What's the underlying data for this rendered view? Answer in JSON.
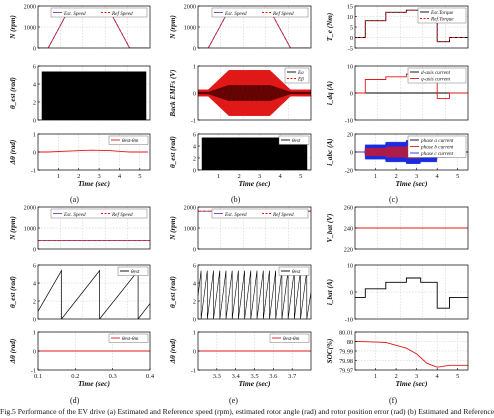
{
  "caption": "Fig.5 Performance of the EV drive (a) Estimated and Reference speed (rpm), estimated rotor angle (rad) and rotor position error (rad) (b) Estimated and Reference",
  "panel_labels": [
    "(a)",
    "(b)",
    "(c)",
    "(d)",
    "(e)",
    "(f)"
  ],
  "colors": {
    "est": "#7b3fa6",
    "ref": "#e01818",
    "black": "#000000",
    "red": "#e01818",
    "grey": "#808080",
    "blue": "#1a2be0",
    "green": "#1d8a2a"
  },
  "chart_data": [
    {
      "id": "a1",
      "type": "line",
      "ylabel": "N (rpm)",
      "xlim": [
        0,
        5.5
      ],
      "ylim": [
        0,
        2000
      ],
      "yticks": [
        "0",
        "1000",
        "2000"
      ],
      "xticks": [],
      "xticklabels": [],
      "grid": true,
      "legend": "top-right",
      "series": [
        {
          "name": "Est. Speed",
          "color": "#7b3fa6",
          "dash": false,
          "x": [
            0,
            0.5,
            1.5,
            2.6,
            3.5,
            4.5,
            5.4
          ],
          "y": [
            0,
            0,
            1800,
            1800,
            1800,
            0,
            0
          ]
        },
        {
          "name": "Ref Speed",
          "color": "#e01818",
          "dash": true,
          "x": [
            0,
            0.5,
            1.5,
            2.6,
            3.5,
            4.5,
            5.4
          ],
          "y": [
            0,
            0,
            1800,
            1800,
            1800,
            0,
            0
          ]
        }
      ]
    },
    {
      "id": "b1",
      "type": "line",
      "ylabel": "N (rpm)",
      "xlim": [
        0,
        5.5
      ],
      "ylim": [
        0,
        2000
      ],
      "yticks": [
        "0",
        "1000",
        "2000"
      ],
      "xticks": [],
      "xticklabels": [],
      "grid": true,
      "legend": "top-right",
      "series": [
        {
          "name": "Est. Speed",
          "color": "#7b3fa6",
          "dash": false,
          "x": [
            0,
            0.5,
            1.5,
            2.6,
            3.5,
            4.5,
            5.4
          ],
          "y": [
            0,
            0,
            1800,
            1800,
            1800,
            0,
            0
          ]
        },
        {
          "name": "Ref Speed",
          "color": "#e01818",
          "dash": true,
          "x": [
            0,
            0.5,
            1.5,
            2.6,
            3.5,
            4.5,
            5.4
          ],
          "y": [
            0,
            0,
            1800,
            1800,
            1800,
            0,
            0
          ]
        }
      ]
    },
    {
      "id": "c1",
      "type": "line",
      "ylabel": "T_e (Nm)",
      "xlim": [
        0,
        5.5
      ],
      "ylim": [
        -5,
        15
      ],
      "yticks": [
        "-5",
        "0",
        "5",
        "10",
        "15"
      ],
      "xticks": [],
      "xticklabels": [],
      "grid": true,
      "legend": "top-right",
      "series": [
        {
          "name": "Est.Torque",
          "color": "#000000",
          "dash": false,
          "x": [
            0,
            0.5,
            0.5,
            1.5,
            1.5,
            2.5,
            2.5,
            3.2,
            3.2,
            4.0,
            4.0,
            4.6,
            4.6,
            5.5
          ],
          "y": [
            0,
            0,
            8,
            8,
            12,
            12,
            13,
            13,
            12,
            12,
            -2,
            -2,
            0,
            0
          ]
        },
        {
          "name": "Ref.Torque",
          "color": "#e01818",
          "dash": true,
          "x": [
            0,
            0.5,
            0.5,
            1.5,
            1.5,
            2.5,
            2.5,
            3.2,
            3.2,
            4.0,
            4.0,
            4.6,
            4.6,
            5.5
          ],
          "y": [
            0,
            0,
            8,
            8,
            12,
            12,
            13,
            13,
            12,
            12,
            -2,
            -2,
            0,
            0
          ]
        }
      ]
    },
    {
      "id": "a2",
      "type": "line",
      "ylabel": "θ_est (rad)",
      "xlim": [
        0,
        5.5
      ],
      "ylim": [
        0,
        7
      ],
      "yticks": [
        "0",
        "2",
        "4",
        "6"
      ],
      "xticks": [],
      "xticklabels": [],
      "grid": true,
      "legend": "none",
      "series": []
    },
    {
      "id": "b2",
      "type": "line",
      "ylabel": "Back EMFs (V)",
      "xlim": [
        0,
        5.5
      ],
      "ylim": [
        -1,
        1
      ],
      "yticks": [
        "-1",
        "0",
        "1"
      ],
      "xticks": [],
      "xticklabels": [],
      "grid": true,
      "legend": "top-right",
      "series": [
        {
          "name": "Ea",
          "color": "#000000",
          "dash": false
        },
        {
          "name": "Eβ",
          "color": "#e01818",
          "dash": true
        }
      ]
    },
    {
      "id": "c2",
      "type": "line",
      "ylabel": "i_dq (A)",
      "xlim": [
        0,
        5.5
      ],
      "ylim": [
        -10,
        10
      ],
      "yticks": [
        "-10",
        "0",
        "10"
      ],
      "xticks": [],
      "xticklabels": [],
      "grid": true,
      "legend": "top-right",
      "series": [
        {
          "name": "d-axis current",
          "color": "#000000",
          "dash": false,
          "x": [
            0,
            0.5,
            1.5,
            2.5,
            3.2,
            4.0,
            4.6,
            5.5
          ],
          "y": [
            0,
            0,
            0,
            0,
            0,
            0,
            0,
            0
          ]
        },
        {
          "name": "q-axis current",
          "color": "#e01818",
          "dash": false,
          "x": [
            0,
            0.5,
            0.5,
            1.5,
            1.5,
            2.5,
            2.5,
            3.2,
            3.2,
            4.0,
            4.0,
            4.6,
            4.6,
            5.5
          ],
          "y": [
            0,
            0,
            5,
            5,
            6,
            6,
            7,
            7,
            6,
            6,
            -2,
            -2,
            0,
            0
          ]
        }
      ]
    },
    {
      "id": "a3",
      "type": "line",
      "ylabel": "Δθ (rad)",
      "xlim": [
        0,
        5.5
      ],
      "ylim": [
        -1,
        1
      ],
      "yticks": [
        "-1",
        "0",
        "1"
      ],
      "xticks": [
        1,
        2,
        3,
        4,
        5
      ],
      "xticklabels": [
        "1",
        "2",
        "3",
        "4",
        "5"
      ],
      "xlabel": "Time (sec)",
      "grid": true,
      "legend": "top-right",
      "series": [
        {
          "name": "θest-θm",
          "color": "#e01818",
          "dash": false,
          "x": [
            0,
            0.5,
            1.5,
            2.6,
            3.5,
            4.5,
            5.4
          ],
          "y": [
            0,
            0,
            0.05,
            0.1,
            0.08,
            0,
            0
          ]
        }
      ]
    },
    {
      "id": "b3",
      "type": "line",
      "ylabel": "θ_est (rad)",
      "xlim": [
        0,
        5.5
      ],
      "ylim": [
        0,
        7
      ],
      "yticks": [
        "0",
        "2",
        "4",
        "6"
      ],
      "xticks": [
        1,
        2,
        3,
        4,
        5
      ],
      "xticklabels": [
        "1",
        "2",
        "3",
        "4",
        "5"
      ],
      "xlabel": "Time (sec)",
      "grid": true,
      "legend": "top-right",
      "series": [
        {
          "name": "θest",
          "color": "#000000",
          "dash": false
        }
      ]
    },
    {
      "id": "c3",
      "type": "line",
      "ylabel": "i_abc (A)",
      "xlim": [
        0,
        5.5
      ],
      "ylim": [
        -20,
        20
      ],
      "yticks": [
        "-20",
        "0",
        "20"
      ],
      "xticks": [
        1,
        2,
        3,
        4,
        5
      ],
      "xticklabels": [
        "1",
        "2",
        "3",
        "4",
        "5"
      ],
      "xlabel": "Time (sec)",
      "grid": true,
      "legend": "top-right",
      "series": [
        {
          "name": "phase a current",
          "color": "#000000",
          "dash": false
        },
        {
          "name": "phase b current",
          "color": "#e01818",
          "dash": false
        },
        {
          "name": "phase c current",
          "color": "#1a2be0",
          "dash": false
        }
      ]
    },
    {
      "id": "d1",
      "type": "line",
      "ylabel": "N (rpm)",
      "xlim": [
        0.1,
        0.4
      ],
      "ylim": [
        0,
        2000
      ],
      "yticks": [
        "0",
        "1000",
        "2000"
      ],
      "xticks": [],
      "xticklabels": [],
      "grid": true,
      "legend": "top-right",
      "series": [
        {
          "name": "Est. Speed",
          "color": "#7b3fa6",
          "dash": false,
          "x": [
            0.1,
            0.4
          ],
          "y": [
            400,
            400
          ]
        },
        {
          "name": "Ref Speed",
          "color": "#e01818",
          "dash": true,
          "x": [
            0.1,
            0.4
          ],
          "y": [
            400,
            400
          ]
        }
      ]
    },
    {
      "id": "e1",
      "type": "line",
      "ylabel": "N (rpm)",
      "xlim": [
        3.2,
        3.8
      ],
      "ylim": [
        0,
        2000
      ],
      "yticks": [
        "0",
        "1000",
        "2000"
      ],
      "xticks": [],
      "xticklabels": [],
      "grid": true,
      "legend": "top-right",
      "series": [
        {
          "name": "Est. Speed",
          "color": "#7b3fa6",
          "dash": false,
          "x": [
            3.2,
            3.8
          ],
          "y": [
            1800,
            1800
          ]
        },
        {
          "name": "Ref Speed",
          "color": "#e01818",
          "dash": true,
          "x": [
            3.2,
            3.8
          ],
          "y": [
            1800,
            1800
          ]
        }
      ]
    },
    {
      "id": "f1",
      "type": "line",
      "ylabel": "V_bat (V)",
      "xlim": [
        0,
        5.5
      ],
      "ylim": [
        220,
        260
      ],
      "yticks": [
        "220",
        "240",
        "260"
      ],
      "xticks": [],
      "xticklabels": [],
      "grid": true,
      "legend": "none",
      "series": [
        {
          "name": "",
          "color": "#e01818",
          "dash": false,
          "x": [
            0,
            5.5
          ],
          "y": [
            240,
            240
          ]
        }
      ]
    },
    {
      "id": "d2",
      "type": "line",
      "ylabel": "θ_est (rad)",
      "xlim": [
        0.1,
        0.4
      ],
      "ylim": [
        0,
        7
      ],
      "yticks": [
        "0",
        "2",
        "4",
        "6"
      ],
      "xticks": [],
      "xticklabels": [],
      "grid": true,
      "legend": "top-right",
      "series": [
        {
          "name": "θest",
          "color": "#000000",
          "dash": false
        }
      ]
    },
    {
      "id": "e2",
      "type": "line",
      "ylabel": "θ_est (rad)",
      "xlim": [
        3.2,
        3.8
      ],
      "ylim": [
        0,
        7
      ],
      "yticks": [
        "0",
        "2",
        "4",
        "6"
      ],
      "xticks": [],
      "xticklabels": [],
      "grid": true,
      "legend": "top-right",
      "series": [
        {
          "name": "θest",
          "color": "#000000",
          "dash": false
        }
      ]
    },
    {
      "id": "f2",
      "type": "line",
      "ylabel": "i_bat (A)",
      "xlim": [
        0,
        5.5
      ],
      "ylim": [
        -10,
        15
      ],
      "yticks": [
        "-10",
        "0",
        "10"
      ],
      "xticks": [],
      "xticklabels": [],
      "grid": true,
      "legend": "none",
      "series": [
        {
          "name": "",
          "color": "#000000",
          "dash": false,
          "x": [
            0,
            0.5,
            0.5,
            1.5,
            1.5,
            2.5,
            2.5,
            3.2,
            3.2,
            4.0,
            4.0,
            4.6,
            4.6,
            5.5
          ],
          "y": [
            0,
            0,
            4,
            4,
            7,
            7,
            9,
            9,
            7,
            7,
            -5,
            -5,
            0,
            0
          ]
        }
      ]
    },
    {
      "id": "d3",
      "type": "line",
      "ylabel": "Δθ (rad)",
      "xlim": [
        0.1,
        0.4
      ],
      "ylim": [
        -1,
        1
      ],
      "yticks": [
        "-1",
        "0",
        "1"
      ],
      "xticks": [
        0.1,
        0.2,
        0.3,
        0.4
      ],
      "xticklabels": [
        "0.1",
        "0.2",
        "0.3",
        "0.4"
      ],
      "xlabel": "Time (sec)",
      "grid": true,
      "legend": "top-right",
      "series": [
        {
          "name": "θest-θm",
          "color": "#e01818",
          "dash": false,
          "x": [
            0.1,
            0.4
          ],
          "y": [
            0,
            0
          ]
        }
      ]
    },
    {
      "id": "e3",
      "type": "line",
      "ylabel": "Δθ (rad)",
      "xlim": [
        3.2,
        3.8
      ],
      "ylim": [
        -1,
        1
      ],
      "yticks": [
        "-1",
        "0",
        "1"
      ],
      "xticks": [
        3.3,
        3.4,
        3.5,
        3.6,
        3.7
      ],
      "xticklabels": [
        "3.3",
        "3.4",
        "3.5",
        "3.6",
        "3.7"
      ],
      "xlabel": "Time (sec)",
      "grid": true,
      "legend": "top-right",
      "series": [
        {
          "name": "θest-θm",
          "color": "#e01818",
          "dash": false,
          "x": [
            3.2,
            3.8
          ],
          "y": [
            0,
            0
          ]
        }
      ]
    },
    {
      "id": "f3",
      "type": "line",
      "ylabel": "SOC(%)",
      "xlim": [
        0,
        5.5
      ],
      "ylim": [
        79.97,
        80.01
      ],
      "yticks": [
        "79.97",
        "79.98",
        "79.99",
        "80",
        "80.01"
      ],
      "xticks": [
        1,
        2,
        3,
        4,
        5
      ],
      "xticklabels": [
        "1",
        "2",
        "3",
        "4",
        "5"
      ],
      "xlabel": "Time (sec)",
      "grid": true,
      "legend": "none",
      "series": [
        {
          "name": "",
          "color": "#e01818",
          "dash": false,
          "x": [
            0,
            0.5,
            1.5,
            2.5,
            3.0,
            3.5,
            4.0,
            4.6,
            5.5
          ],
          "y": [
            80.0,
            79.9998,
            79.999,
            79.993,
            79.987,
            79.977,
            79.973,
            79.975,
            79.975
          ]
        }
      ]
    }
  ]
}
